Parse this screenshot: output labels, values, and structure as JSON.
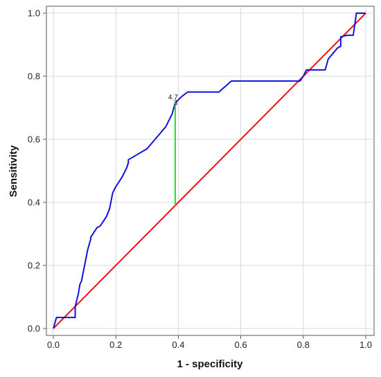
{
  "chart_data": {
    "type": "line",
    "title": "",
    "xlabel": "1 - specificity",
    "ylabel": "Sensitivity",
    "xlim": [
      0,
      1
    ],
    "ylim": [
      0,
      1
    ],
    "x_ticks": [
      "0.0",
      "0.2",
      "0.4",
      "0.6",
      "0.8",
      "1.0"
    ],
    "y_ticks": [
      "0.0",
      "0.2",
      "0.4",
      "0.6",
      "0.8",
      "1.0"
    ],
    "grid": true,
    "legend": "none",
    "colors": {
      "roc": "#1010e0",
      "reference": "#ee1111",
      "youden": "#22dd22",
      "grid": "#d8d8d8",
      "axis": "#555555"
    },
    "roc_curve": {
      "x": [
        0.0,
        0.0,
        0.01,
        0.07,
        0.07,
        0.08,
        0.085,
        0.09,
        0.1,
        0.11,
        0.12,
        0.12,
        0.13,
        0.14,
        0.15,
        0.16,
        0.17,
        0.18,
        0.19,
        0.2,
        0.21,
        0.22,
        0.23,
        0.235,
        0.24,
        0.24,
        0.3,
        0.33,
        0.36,
        0.38,
        0.39,
        0.41,
        0.43,
        0.53,
        0.57,
        0.79,
        0.8,
        0.81,
        0.87,
        0.88,
        0.91,
        0.92,
        0.92,
        0.94,
        0.96,
        0.97,
        1.0
      ],
      "y": [
        0.0,
        0.0,
        0.035,
        0.035,
        0.07,
        0.11,
        0.14,
        0.15,
        0.2,
        0.25,
        0.285,
        0.29,
        0.305,
        0.32,
        0.325,
        0.34,
        0.355,
        0.38,
        0.43,
        0.45,
        0.465,
        0.48,
        0.5,
        0.51,
        0.525,
        0.535,
        0.57,
        0.605,
        0.64,
        0.68,
        0.715,
        0.735,
        0.75,
        0.75,
        0.785,
        0.785,
        0.8,
        0.82,
        0.82,
        0.855,
        0.89,
        0.895,
        0.925,
        0.93,
        0.93,
        1.0,
        1.0
      ]
    },
    "reference_line": {
      "x": [
        0,
        1
      ],
      "y": [
        0,
        1
      ]
    },
    "youden_index": {
      "x": 0.39,
      "y_low": 0.39,
      "y_high": 0.715
    },
    "annotations": [
      "4.7",
      "3"
    ]
  }
}
